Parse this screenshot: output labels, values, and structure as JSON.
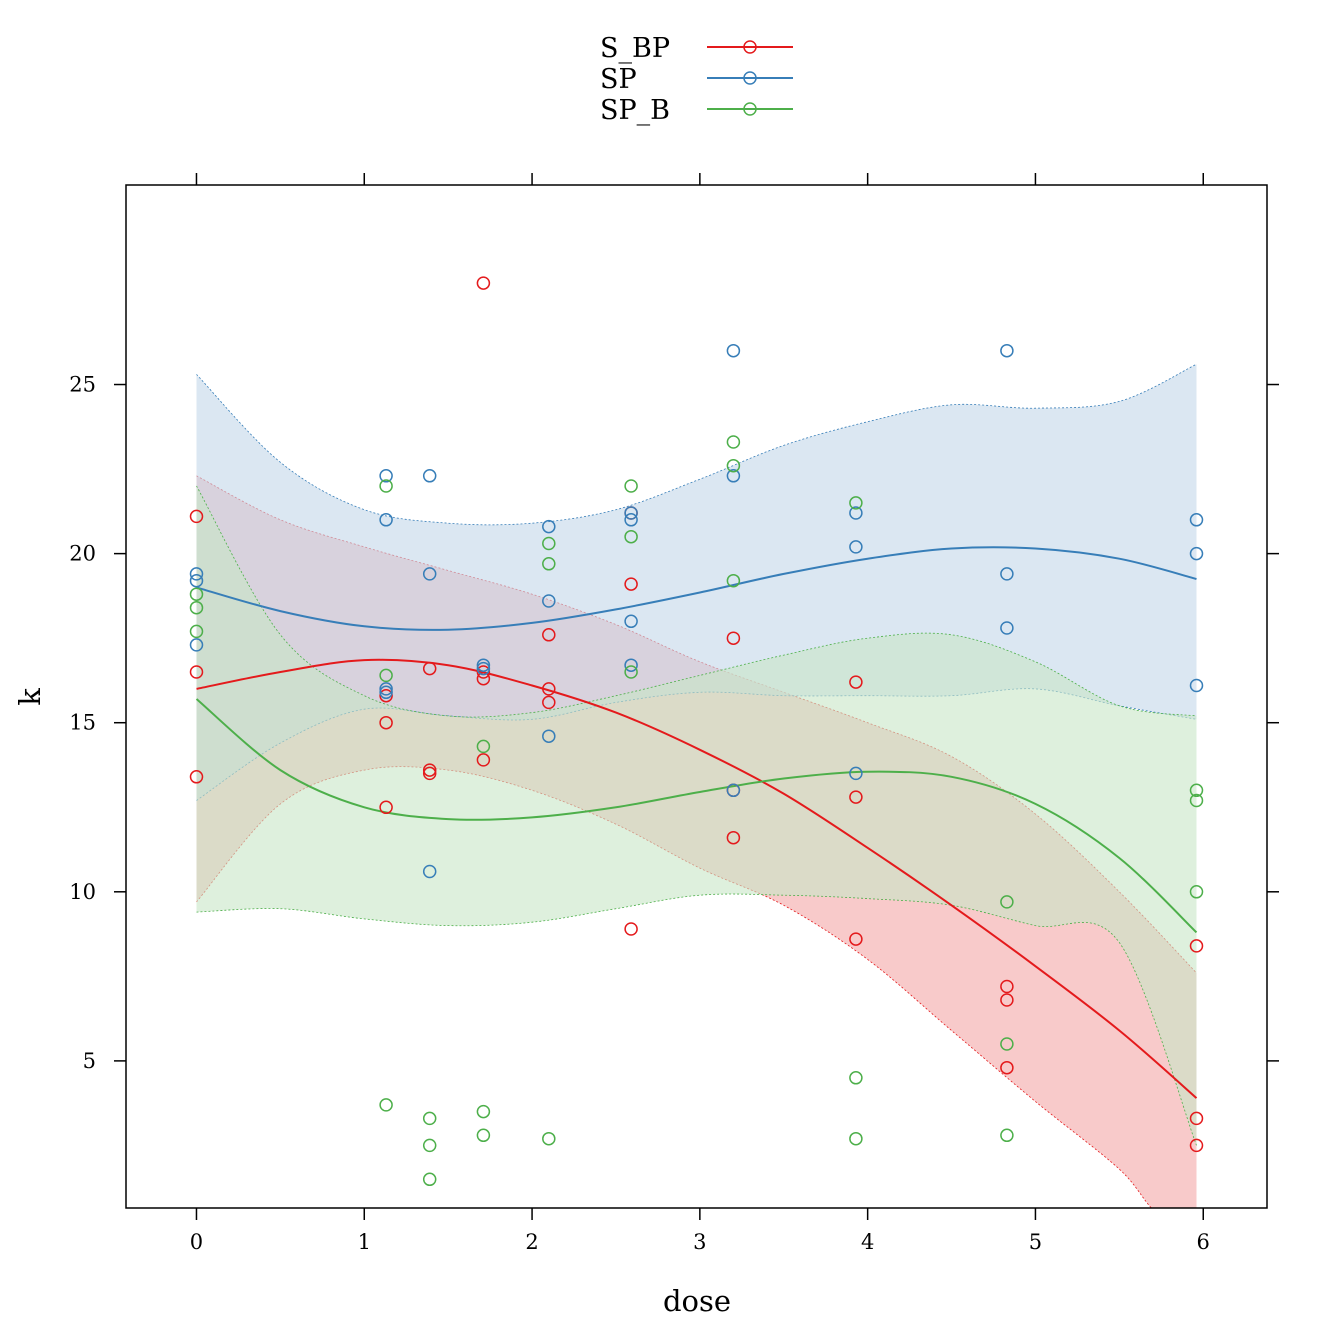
{
  "chart_data": {
    "type": "scatter",
    "xlabel": "dose",
    "ylabel": "k",
    "xlim": [
      -0.42,
      6.38
    ],
    "ylim": [
      0.65,
      30.9
    ],
    "x_ticks": [
      0,
      1,
      2,
      3,
      4,
      5,
      6
    ],
    "y_ticks": [
      5,
      10,
      15,
      20,
      25
    ],
    "legend_position": "top-center",
    "grid": false,
    "overlays": "smooth fitted curve with shaded confidence band per series",
    "series": [
      {
        "name": "S_BP",
        "color": "#E41A1C",
        "band_fill": "#F4A6A6",
        "points": [
          [
            0,
            21.1
          ],
          [
            0,
            16.5
          ],
          [
            0,
            13.4
          ],
          [
            1.13,
            15.8
          ],
          [
            1.13,
            15.0
          ],
          [
            1.13,
            12.5
          ],
          [
            1.39,
            16.6
          ],
          [
            1.39,
            13.6
          ],
          [
            1.39,
            13.5
          ],
          [
            1.71,
            28.0
          ],
          [
            1.71,
            16.5
          ],
          [
            1.71,
            16.3
          ],
          [
            1.71,
            13.9
          ],
          [
            2.1,
            17.6
          ],
          [
            2.1,
            16.0
          ],
          [
            2.1,
            15.6
          ],
          [
            2.59,
            21.2
          ],
          [
            2.59,
            19.1
          ],
          [
            2.59,
            8.9
          ],
          [
            3.2,
            17.5
          ],
          [
            3.2,
            13.0
          ],
          [
            3.2,
            11.6
          ],
          [
            3.93,
            16.2
          ],
          [
            3.93,
            12.8
          ],
          [
            3.93,
            8.6
          ],
          [
            4.83,
            7.2
          ],
          [
            4.83,
            6.8
          ],
          [
            4.83,
            4.8
          ],
          [
            5.96,
            8.4
          ],
          [
            5.96,
            3.3
          ],
          [
            5.96,
            2.5
          ]
        ],
        "fit": [
          [
            0,
            16.0
          ],
          [
            0.5,
            16.5
          ],
          [
            1.0,
            16.85
          ],
          [
            1.5,
            16.7
          ],
          [
            2.0,
            16.1
          ],
          [
            2.5,
            15.3
          ],
          [
            3.0,
            14.2
          ],
          [
            3.5,
            12.9
          ],
          [
            4.0,
            11.3
          ],
          [
            4.5,
            9.6
          ],
          [
            5.0,
            7.8
          ],
          [
            5.5,
            5.9
          ],
          [
            5.96,
            3.9
          ]
        ],
        "band_upper": [
          [
            0,
            22.3
          ],
          [
            0.5,
            21.0
          ],
          [
            1.0,
            20.2
          ],
          [
            1.5,
            19.5
          ],
          [
            2.0,
            18.8
          ],
          [
            2.5,
            17.9
          ],
          [
            3.0,
            16.8
          ],
          [
            3.5,
            15.9
          ],
          [
            4.0,
            15.0
          ],
          [
            4.5,
            14.0
          ],
          [
            5.0,
            12.3
          ],
          [
            5.5,
            10.0
          ],
          [
            5.96,
            7.6
          ]
        ],
        "band_lower": [
          [
            0,
            9.7
          ],
          [
            0.5,
            12.6
          ],
          [
            1.0,
            13.6
          ],
          [
            1.5,
            13.6
          ],
          [
            2.0,
            13.0
          ],
          [
            2.5,
            12.0
          ],
          [
            3.0,
            10.7
          ],
          [
            3.5,
            9.6
          ],
          [
            4.0,
            8.0
          ],
          [
            4.5,
            5.9
          ],
          [
            5.0,
            3.8
          ],
          [
            5.5,
            1.8
          ],
          [
            5.73,
            0.5
          ],
          [
            5.96,
            0.5
          ]
        ]
      },
      {
        "name": "SP",
        "color": "#377EB8",
        "band_fill": "#C3D7EA",
        "points": [
          [
            0,
            19.4
          ],
          [
            0,
            19.2
          ],
          [
            0,
            17.3
          ],
          [
            1.13,
            22.3
          ],
          [
            1.13,
            21.0
          ],
          [
            1.13,
            16.0
          ],
          [
            1.13,
            15.9
          ],
          [
            1.39,
            22.3
          ],
          [
            1.39,
            19.4
          ],
          [
            1.39,
            10.6
          ],
          [
            1.71,
            16.7
          ],
          [
            1.71,
            16.6
          ],
          [
            2.1,
            20.8
          ],
          [
            2.1,
            18.6
          ],
          [
            2.1,
            14.6
          ],
          [
            2.59,
            21.2
          ],
          [
            2.59,
            21.0
          ],
          [
            2.59,
            18.0
          ],
          [
            2.59,
            16.7
          ],
          [
            3.2,
            26.0
          ],
          [
            3.2,
            22.3
          ],
          [
            3.2,
            13.0
          ],
          [
            3.93,
            21.2
          ],
          [
            3.93,
            20.2
          ],
          [
            3.93,
            13.5
          ],
          [
            4.83,
            26.0
          ],
          [
            4.83,
            19.4
          ],
          [
            4.83,
            17.8
          ],
          [
            5.96,
            21.0
          ],
          [
            5.96,
            20.0
          ],
          [
            5.96,
            16.1
          ]
        ],
        "fit": [
          [
            0,
            19.0
          ],
          [
            0.5,
            18.3
          ],
          [
            1.0,
            17.85
          ],
          [
            1.5,
            17.75
          ],
          [
            2.0,
            17.95
          ],
          [
            2.5,
            18.35
          ],
          [
            3.0,
            18.85
          ],
          [
            3.5,
            19.4
          ],
          [
            4.0,
            19.85
          ],
          [
            4.5,
            20.15
          ],
          [
            5.0,
            20.15
          ],
          [
            5.5,
            19.85
          ],
          [
            5.96,
            19.25
          ]
        ],
        "band_upper": [
          [
            0,
            25.3
          ],
          [
            0.5,
            22.7
          ],
          [
            1.0,
            21.3
          ],
          [
            1.5,
            20.9
          ],
          [
            2.0,
            20.9
          ],
          [
            2.5,
            21.3
          ],
          [
            3.0,
            22.2
          ],
          [
            3.5,
            23.2
          ],
          [
            4.0,
            23.9
          ],
          [
            4.5,
            24.4
          ],
          [
            5.0,
            24.3
          ],
          [
            5.5,
            24.5
          ],
          [
            5.96,
            25.6
          ]
        ],
        "band_lower": [
          [
            0,
            12.7
          ],
          [
            0.5,
            14.4
          ],
          [
            1.0,
            15.4
          ],
          [
            1.5,
            15.2
          ],
          [
            2.0,
            15.1
          ],
          [
            2.5,
            15.6
          ],
          [
            3.0,
            15.9
          ],
          [
            3.5,
            15.8
          ],
          [
            4.0,
            15.8
          ],
          [
            4.5,
            15.8
          ],
          [
            5.0,
            16.0
          ],
          [
            5.5,
            15.5
          ],
          [
            5.96,
            15.1
          ]
        ]
      },
      {
        "name": "SP_B",
        "color": "#4DAF4A",
        "band_fill": "#C8E6C7",
        "points": [
          [
            0,
            18.8
          ],
          [
            0,
            18.4
          ],
          [
            0,
            17.7
          ],
          [
            1.13,
            22.0
          ],
          [
            1.13,
            16.4
          ],
          [
            1.13,
            3.7
          ],
          [
            1.39,
            3.3
          ],
          [
            1.39,
            2.5
          ],
          [
            1.39,
            1.5
          ],
          [
            1.71,
            14.3
          ],
          [
            1.71,
            3.5
          ],
          [
            1.71,
            2.8
          ],
          [
            2.1,
            20.3
          ],
          [
            2.1,
            19.7
          ],
          [
            2.1,
            2.7
          ],
          [
            2.59,
            22.0
          ],
          [
            2.59,
            20.5
          ],
          [
            2.59,
            16.5
          ],
          [
            3.2,
            23.3
          ],
          [
            3.2,
            22.6
          ],
          [
            3.2,
            19.2
          ],
          [
            3.93,
            21.5
          ],
          [
            3.93,
            4.5
          ],
          [
            3.93,
            2.7
          ],
          [
            4.83,
            9.7
          ],
          [
            4.83,
            5.5
          ],
          [
            4.83,
            2.8
          ],
          [
            5.96,
            13.0
          ],
          [
            5.96,
            12.7
          ],
          [
            5.96,
            10.0
          ]
        ],
        "fit": [
          [
            0,
            15.7
          ],
          [
            0.5,
            13.6
          ],
          [
            1.0,
            12.5
          ],
          [
            1.5,
            12.15
          ],
          [
            2.0,
            12.2
          ],
          [
            2.5,
            12.5
          ],
          [
            3.0,
            12.95
          ],
          [
            3.5,
            13.35
          ],
          [
            4.0,
            13.55
          ],
          [
            4.5,
            13.4
          ],
          [
            5.0,
            12.6
          ],
          [
            5.5,
            11.0
          ],
          [
            5.96,
            8.8
          ]
        ],
        "band_upper": [
          [
            0,
            22.0
          ],
          [
            0.5,
            17.6
          ],
          [
            1.0,
            15.8
          ],
          [
            1.5,
            15.2
          ],
          [
            2.0,
            15.3
          ],
          [
            2.5,
            15.8
          ],
          [
            3.0,
            16.4
          ],
          [
            3.5,
            17.0
          ],
          [
            4.0,
            17.5
          ],
          [
            4.5,
            17.6
          ],
          [
            5.0,
            16.8
          ],
          [
            5.5,
            15.5
          ],
          [
            5.96,
            15.2
          ]
        ],
        "band_lower": [
          [
            0,
            9.4
          ],
          [
            0.5,
            9.5
          ],
          [
            1.0,
            9.2
          ],
          [
            1.5,
            9.0
          ],
          [
            2.0,
            9.1
          ],
          [
            2.5,
            9.5
          ],
          [
            3.0,
            9.9
          ],
          [
            3.5,
            9.9
          ],
          [
            4.0,
            9.8
          ],
          [
            4.5,
            9.6
          ],
          [
            5.0,
            9.0
          ],
          [
            5.5,
            8.5
          ],
          [
            5.96,
            2.5
          ]
        ]
      }
    ]
  }
}
